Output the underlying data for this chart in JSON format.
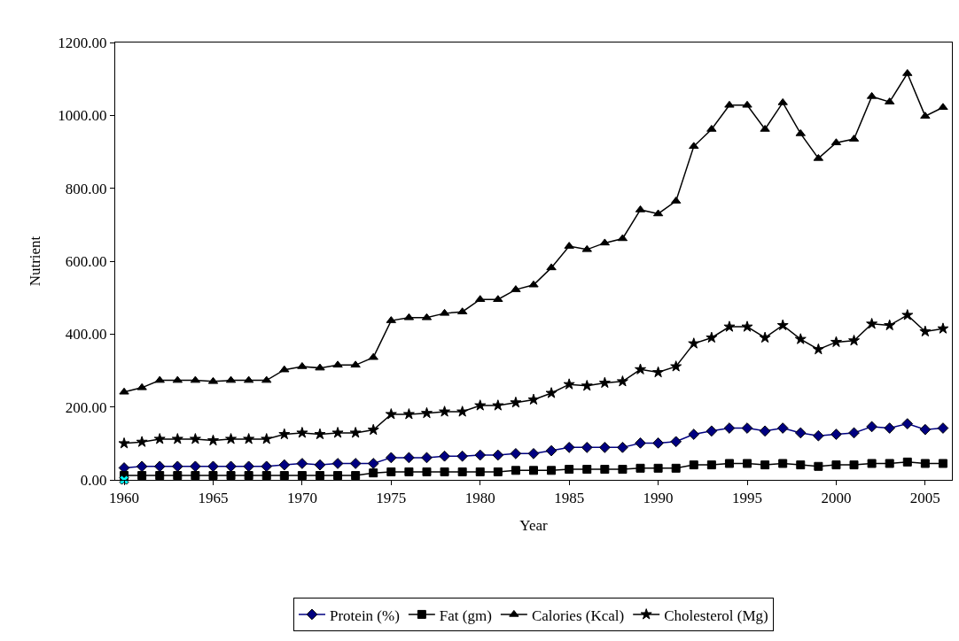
{
  "chart_data": {
    "type": "line",
    "xlabel": "Year",
    "ylabel": "Nutrient",
    "x": [
      1960,
      1961,
      1962,
      1963,
      1964,
      1965,
      1966,
      1967,
      1968,
      1969,
      1970,
      1971,
      1972,
      1973,
      1974,
      1975,
      1976,
      1977,
      1978,
      1979,
      1980,
      1981,
      1982,
      1983,
      1984,
      1985,
      1986,
      1987,
      1988,
      1989,
      1990,
      1991,
      1992,
      1993,
      1994,
      1995,
      1996,
      1997,
      1998,
      1999,
      2000,
      2001,
      2002,
      2003,
      2004,
      2005,
      2006
    ],
    "series": [
      {
        "name": "Protein (%)",
        "color": "#000080",
        "marker": "diamond",
        "values": [
          33,
          37,
          37,
          37,
          37,
          37,
          37,
          37,
          37,
          41,
          45,
          41,
          45,
          45,
          45,
          61,
          61,
          61,
          65,
          65,
          68,
          68,
          72,
          72,
          80,
          89,
          89,
          89,
          89,
          101,
          101,
          105,
          125,
          134,
          142,
          142,
          134,
          142,
          129,
          121,
          125,
          129,
          146,
          142,
          154,
          138,
          142
        ]
      },
      {
        "name": "Fat (gm)",
        "color": "#000000",
        "marker": "square",
        "values": [
          12,
          12,
          12,
          12,
          12,
          12,
          12,
          12,
          12,
          12,
          12,
          12,
          12,
          12,
          19,
          22,
          22,
          22,
          22,
          22,
          22,
          22,
          26,
          26,
          26,
          29,
          29,
          29,
          29,
          32,
          32,
          32,
          41,
          41,
          45,
          45,
          41,
          45,
          41,
          37,
          41,
          41,
          45,
          45,
          49,
          45,
          45
        ]
      },
      {
        "name": "Calories (Kcal)",
        "color": "#000000",
        "marker": "triangle",
        "values": [
          241,
          253,
          273,
          273,
          273,
          270,
          273,
          273,
          273,
          302,
          311,
          307,
          315,
          315,
          336,
          437,
          445,
          445,
          457,
          461,
          495,
          495,
          522,
          535,
          582,
          641,
          632,
          650,
          662,
          741,
          730,
          765,
          915,
          962,
          1028,
          1028,
          962,
          1035,
          950,
          882,
          925,
          935,
          1052,
          1037,
          1115,
          998,
          1022
        ]
      },
      {
        "name": "Cholesterol (Mg)",
        "color": "#000000",
        "marker": "star",
        "values": [
          100,
          104,
          112,
          112,
          112,
          108,
          112,
          112,
          112,
          125,
          129,
          125,
          129,
          129,
          137,
          180,
          180,
          183,
          187,
          187,
          204,
          204,
          212,
          220,
          238,
          262,
          258,
          266,
          270,
          303,
          295,
          311,
          374,
          390,
          420,
          420,
          390,
          424,
          386,
          358,
          378,
          382,
          428,
          424,
          452,
          407,
          415
        ]
      },
      {
        "color": "#00ffff",
        "marker": "cross",
        "type": "scatter",
        "x": [
          1960
        ],
        "values": [
          0
        ]
      }
    ],
    "xlim": [
      1959.5,
      2006.5
    ],
    "xticks": [
      1960,
      1965,
      1970,
      1975,
      1980,
      1985,
      1990,
      1995,
      2000,
      2005
    ],
    "ylim": [
      0,
      1200
    ],
    "yticks": [
      {
        "value": 0,
        "label": "0.00"
      },
      {
        "value": 200,
        "label": "200.00"
      },
      {
        "value": 400,
        "label": "400.00"
      },
      {
        "value": 600,
        "label": "600.00"
      },
      {
        "value": 800,
        "label": "800.00"
      },
      {
        "value": 1000,
        "label": "1000.00"
      },
      {
        "value": 1200,
        "label": "1200.00"
      }
    ],
    "legend": "bottom"
  }
}
